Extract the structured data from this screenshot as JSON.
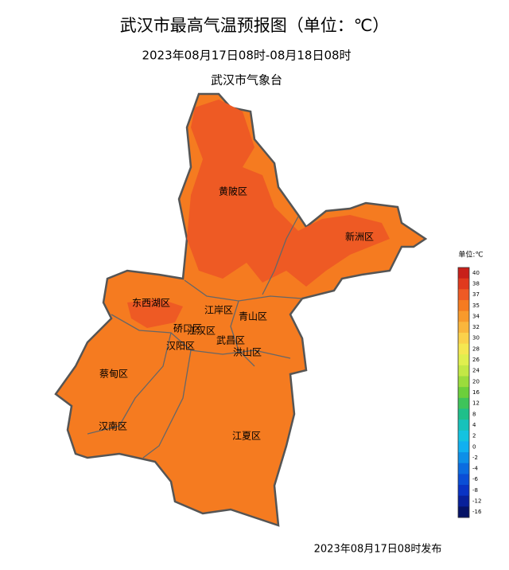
{
  "header": {
    "title": "武汉市最高气温预报图（单位：℃）",
    "period": "2023年08月17日08时-08月18日08时",
    "issuer": "武汉市气象台"
  },
  "districts": [
    "黄陂区",
    "新洲区",
    "东西湖区",
    "江岸区",
    "青山区",
    "硚口区",
    "江汉区",
    "汉阳区",
    "武昌区",
    "洪山区",
    "蔡甸区",
    "汉南区",
    "江夏区"
  ],
  "legend": {
    "unit": "单位:℃",
    "labels": [
      40,
      38,
      37,
      35,
      34,
      32,
      30,
      28,
      26,
      24,
      20,
      16,
      12,
      8,
      4,
      2,
      0,
      -2,
      -4,
      -6,
      -8,
      -12,
      -16
    ],
    "colors": [
      "#c8201a",
      "#e03a1e",
      "#ee5a24",
      "#f57b20",
      "#f89a2c",
      "#fab63c",
      "#fbd14b",
      "#f5e751",
      "#e0ef4e",
      "#c3e845",
      "#9bdc3c",
      "#6ccf3b",
      "#3fc45a",
      "#1fbf8a",
      "#17c2bb",
      "#14c3e0",
      "#11b0f0",
      "#0e8fe8",
      "#0b6ce0",
      "#0a4ed6",
      "#0933c4",
      "#08209a",
      "#061366"
    ]
  },
  "footer": "2023年08月17日08时发布"
}
